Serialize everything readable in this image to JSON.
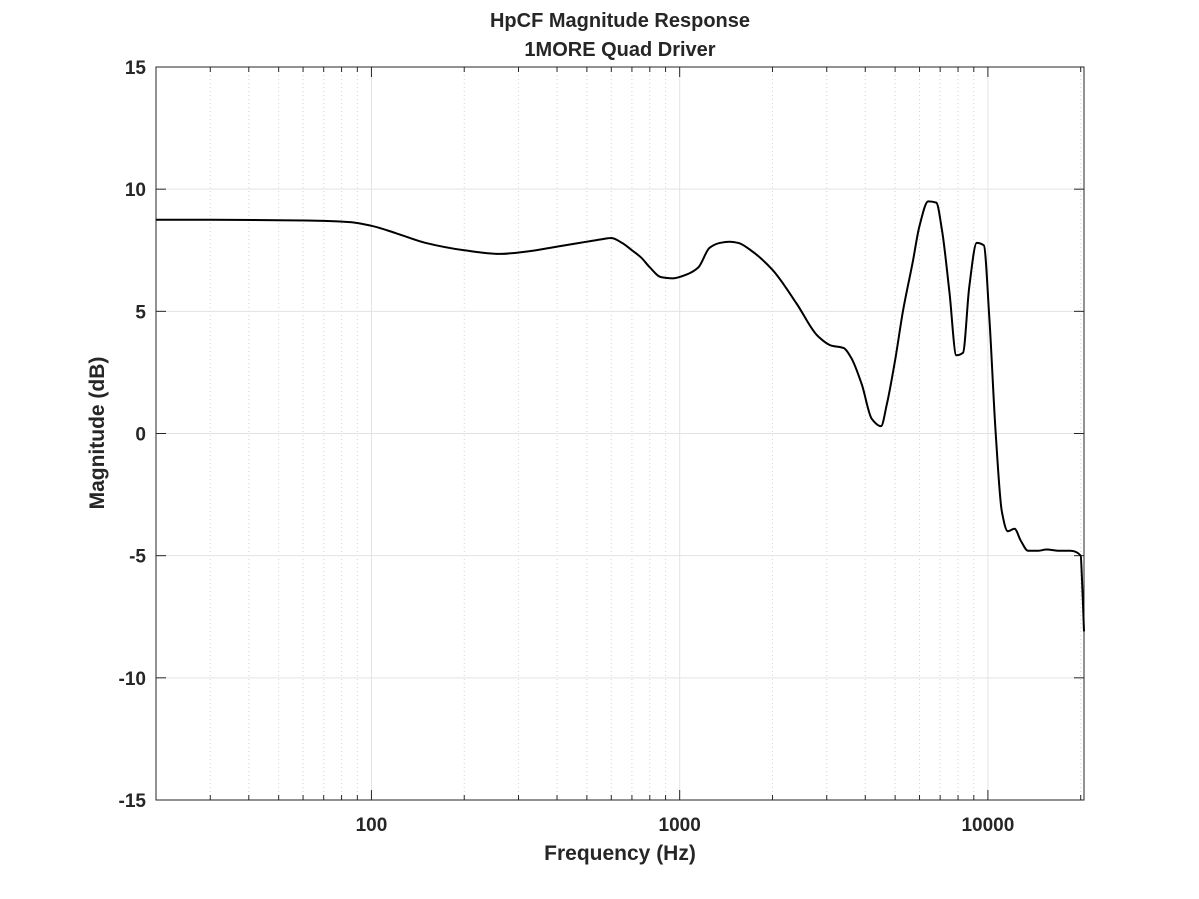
{
  "chart_data": {
    "type": "line",
    "title": "HpCF Magnitude Response",
    "subtitle": "1MORE Quad Driver",
    "xlabel": "Frequency (Hz)",
    "ylabel": "Magnitude (dB)",
    "x_scale": "log",
    "xlim": [
      20,
      20500
    ],
    "ylim": [
      -15,
      15
    ],
    "x_ticks": [
      100,
      1000,
      10000
    ],
    "x_tick_labels": [
      "100",
      "1000",
      "10000"
    ],
    "y_ticks": [
      -15,
      -10,
      -5,
      0,
      5,
      10,
      15
    ],
    "y_tick_labels": [
      "-15",
      "-10",
      "-5",
      "0",
      "5",
      "10",
      "15"
    ],
    "grid": true,
    "line_color": "#000000",
    "grid_color": "#e3e3e3",
    "series": [
      {
        "x": [
          20,
          30,
          50,
          70,
          85,
          100,
          120,
          150,
          200,
          260,
          320,
          400,
          500,
          560,
          600,
          650,
          700,
          750,
          800,
          870,
          950,
          1050,
          1150,
          1250,
          1350,
          1450,
          1550,
          1700,
          2000,
          2400,
          2800,
          3100,
          3400,
          3600,
          3900,
          4200,
          4500,
          4700,
          5000,
          5300,
          5700,
          6000,
          6400,
          6800,
          7100,
          7500,
          7900,
          8300,
          8700,
          9200,
          9700,
          10100,
          10600,
          11100,
          11600,
          12200,
          12800,
          13500,
          14500,
          15500,
          17000,
          18500,
          20000,
          20200,
          20500
        ],
        "y": [
          8.75,
          8.75,
          8.73,
          8.7,
          8.65,
          8.5,
          8.2,
          7.8,
          7.5,
          7.35,
          7.45,
          7.65,
          7.85,
          7.95,
          8.0,
          7.8,
          7.5,
          7.2,
          6.8,
          6.4,
          6.35,
          6.5,
          6.8,
          7.6,
          7.8,
          7.85,
          7.8,
          7.5,
          6.7,
          5.3,
          4.0,
          3.6,
          3.5,
          3.1,
          2.0,
          0.6,
          0.3,
          1.2,
          3.0,
          5.0,
          7.0,
          8.5,
          9.5,
          9.45,
          8.3,
          5.8,
          3.2,
          3.3,
          6.0,
          7.8,
          7.7,
          4.8,
          0.0,
          -3.2,
          -4.0,
          -3.9,
          -4.4,
          -4.8,
          -4.8,
          -4.75,
          -4.8,
          -4.8,
          -5.0,
          -6.0,
          -8.1
        ]
      }
    ]
  }
}
